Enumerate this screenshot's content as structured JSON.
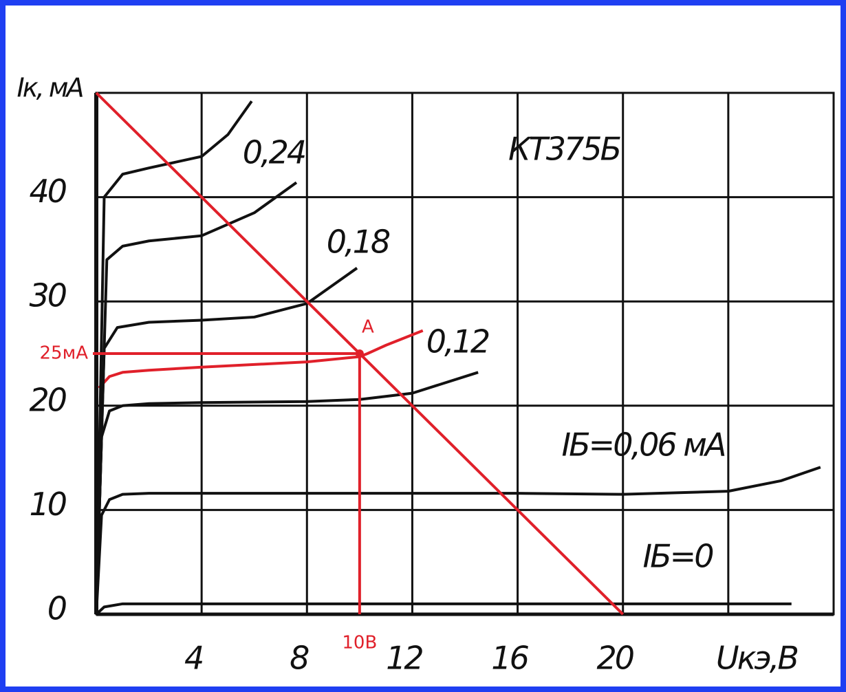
{
  "chart_data": {
    "type": "line",
    "title": "КТ375Б",
    "x_label": "Uкэ,B",
    "y_label": "Iк, мА",
    "xlim": [
      0,
      28
    ],
    "ylim": [
      0,
      50
    ],
    "xticks": [
      4,
      8,
      12,
      16,
      20,
      {
        "value": 24,
        "label": null
      }
    ],
    "yticks": [
      0,
      10,
      20,
      30,
      40
    ],
    "grid": true,
    "series": [
      {
        "name": "IБ=0",
        "color": "#111111",
        "x": [
          0,
          0.3,
          1,
          4,
          12,
          20,
          26.4
        ],
        "values": [
          0,
          0.7,
          1,
          1,
          1,
          1,
          1
        ]
      },
      {
        "name": "IБ=0,06 мА",
        "color": "#111111",
        "x": [
          0,
          0.2,
          0.5,
          1,
          2,
          4,
          8,
          12,
          16,
          20,
          24,
          26,
          27.5
        ],
        "values": [
          0,
          9.5,
          11,
          11.5,
          11.6,
          11.6,
          11.6,
          11.6,
          11.6,
          11.5,
          11.8,
          12.8,
          14.1
        ]
      },
      {
        "color": "#111111",
        "x": [
          0,
          0.2,
          0.5,
          1,
          2,
          4,
          8,
          10,
          12,
          13,
          14.5
        ],
        "values": [
          0,
          17,
          19.5,
          20,
          20.2,
          20.3,
          20.4,
          20.6,
          21.2,
          22,
          23.2
        ]
      },
      {
        "name": "0,12",
        "color": "#e0202a",
        "x": [
          0.1,
          0.5,
          1,
          2,
          4,
          8,
          10,
          10.3,
          11,
          12.4
        ],
        "values": [
          21.7,
          22.8,
          23.2,
          23.4,
          23.7,
          24.2,
          24.7,
          25,
          25.8,
          27.2
        ]
      },
      {
        "name": "0,18",
        "color": "#111111",
        "x": [
          0,
          0.3,
          0.8,
          2,
          4,
          6,
          8,
          9.9
        ],
        "values": [
          0,
          25.5,
          27.5,
          28,
          28.2,
          28.5,
          29.8,
          33.2
        ]
      },
      {
        "color": "#111111",
        "x": [
          0,
          0.4,
          1,
          2,
          4,
          6,
          7.6
        ],
        "values": [
          0,
          34,
          35.3,
          35.8,
          36.3,
          38.5,
          41.4
        ]
      },
      {
        "name": "0,24",
        "color": "#111111",
        "x": [
          0,
          0.3,
          1,
          2,
          4,
          5,
          5.9
        ],
        "values": [
          0,
          40,
          42.2,
          42.8,
          43.9,
          46,
          49.2
        ]
      },
      {
        "color": "#e0202a",
        "x": [
          0,
          20
        ],
        "values": [
          50,
          0
        ]
      }
    ],
    "operating_point": {
      "label": "A",
      "x": 10,
      "y": 25,
      "x_label": "10B",
      "y_label": "25мА",
      "color": "#e0202a"
    }
  }
}
